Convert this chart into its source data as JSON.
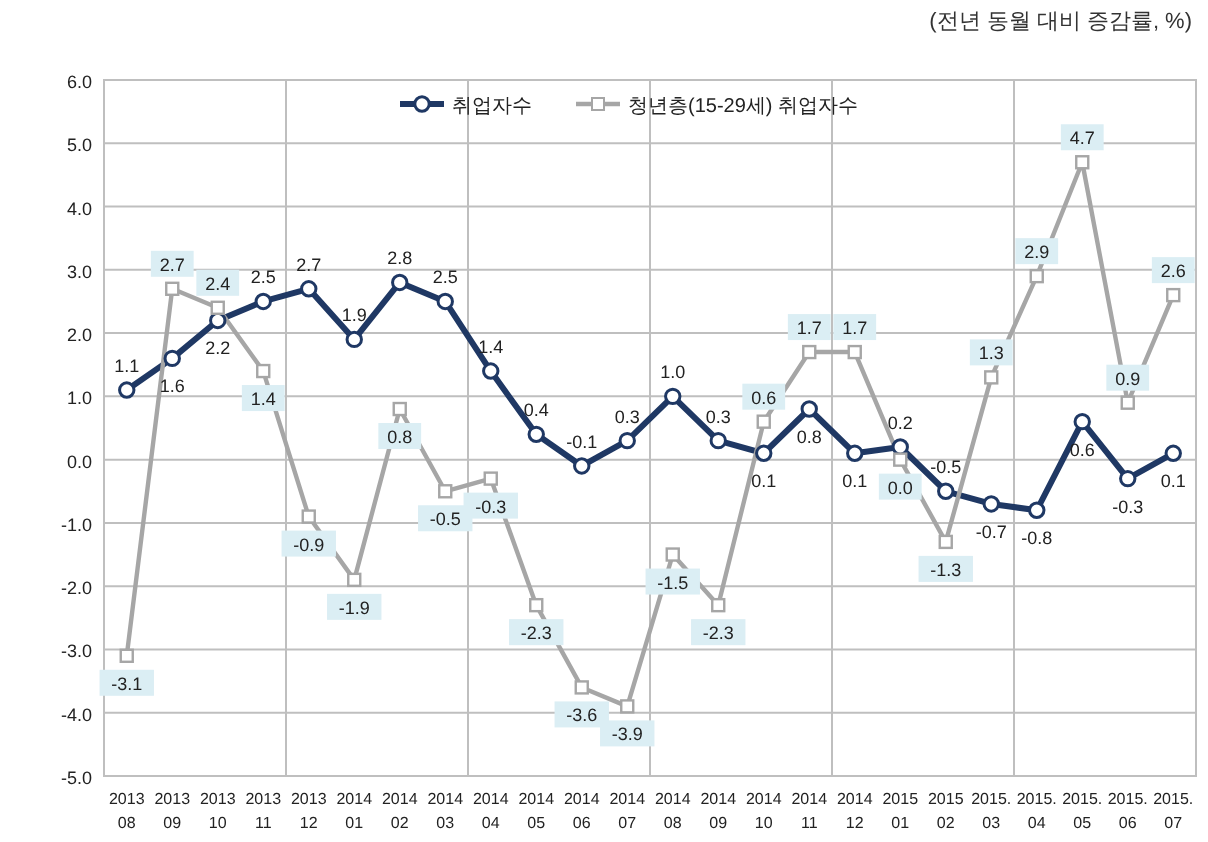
{
  "chart_data": {
    "type": "line",
    "annotations": [
      "(전년 동월 대비 증감률, %)"
    ],
    "categories": [
      "2013 08",
      "2013 09",
      "2013 10",
      "2013 11",
      "2013 12",
      "2014 01",
      "2014 02",
      "2014 03",
      "2014 04",
      "2014 05",
      "2014 06",
      "2014 07",
      "2014 08",
      "2014 09",
      "2014 10",
      "2014 11",
      "2014 12",
      "2015 01",
      "2015 02",
      "2015. 03",
      "2015. 04",
      "2015. 05",
      "2015. 06",
      "2015. 07"
    ],
    "series": [
      {
        "name": "취업자수",
        "color": "#1f3864",
        "marker": "circle",
        "values": [
          1.1,
          1.6,
          2.2,
          2.5,
          2.7,
          1.9,
          2.8,
          2.5,
          1.4,
          0.4,
          -0.1,
          0.3,
          1.0,
          0.3,
          0.1,
          0.8,
          0.1,
          0.2,
          -0.5,
          -0.7,
          -0.8,
          0.6,
          -0.3,
          0.1
        ],
        "value_labels": [
          "1.1",
          "1.6",
          "2.2",
          "2.5",
          "2.7",
          "1.9",
          "2.8",
          "2.5",
          "1.4",
          "0.4",
          "-0.1",
          "0.3",
          "1.0",
          "0.3",
          "0.1",
          "0.8",
          "0.1",
          "0.2",
          "-0.5",
          "-0.7",
          "-0.8",
          "0.6",
          "-0.3",
          "0.1"
        ]
      },
      {
        "name": "청년층(15-29세) 취업자수",
        "color": "#a6a6a6",
        "marker": "square",
        "values": [
          -3.1,
          2.7,
          2.4,
          1.4,
          -0.9,
          -1.9,
          0.8,
          -0.5,
          -0.3,
          -2.3,
          -3.6,
          -3.9,
          -1.5,
          -2.3,
          0.6,
          1.7,
          1.7,
          0.0,
          -1.3,
          1.3,
          2.9,
          4.7,
          0.9,
          2.6
        ],
        "value_labels": [
          "-3.1",
          "2.7",
          "2.4",
          "1.4",
          "-0.9",
          "-1.9",
          "0.8",
          "-0.5",
          "-0.3",
          "-2.3",
          "-3.6",
          "-3.9",
          "-1.5",
          "-2.3",
          "0.6",
          "1.7",
          "1.7",
          "0.0",
          "-1.3",
          "1.3",
          "2.9",
          "4.7",
          "0.9",
          "2.6"
        ]
      }
    ],
    "ylim": [
      -5,
      6
    ],
    "yticks": [
      {
        "value": -5,
        "label": "-5.0"
      },
      {
        "value": -4,
        "label": "-4.0"
      },
      {
        "value": -3,
        "label": "-3.0"
      },
      {
        "value": -2,
        "label": "-2.0"
      },
      {
        "value": -1,
        "label": "-1.0"
      },
      {
        "value": 0,
        "label": "0.0"
      },
      {
        "value": 1,
        "label": "1.0"
      },
      {
        "value": 2,
        "label": "2.0"
      },
      {
        "value": 3,
        "label": "3.0"
      },
      {
        "value": 4,
        "label": "4.0"
      },
      {
        "value": 5,
        "label": "5.0"
      },
      {
        "value": 6,
        "label": "6.0"
      }
    ],
    "grid": true,
    "legend": "top"
  }
}
